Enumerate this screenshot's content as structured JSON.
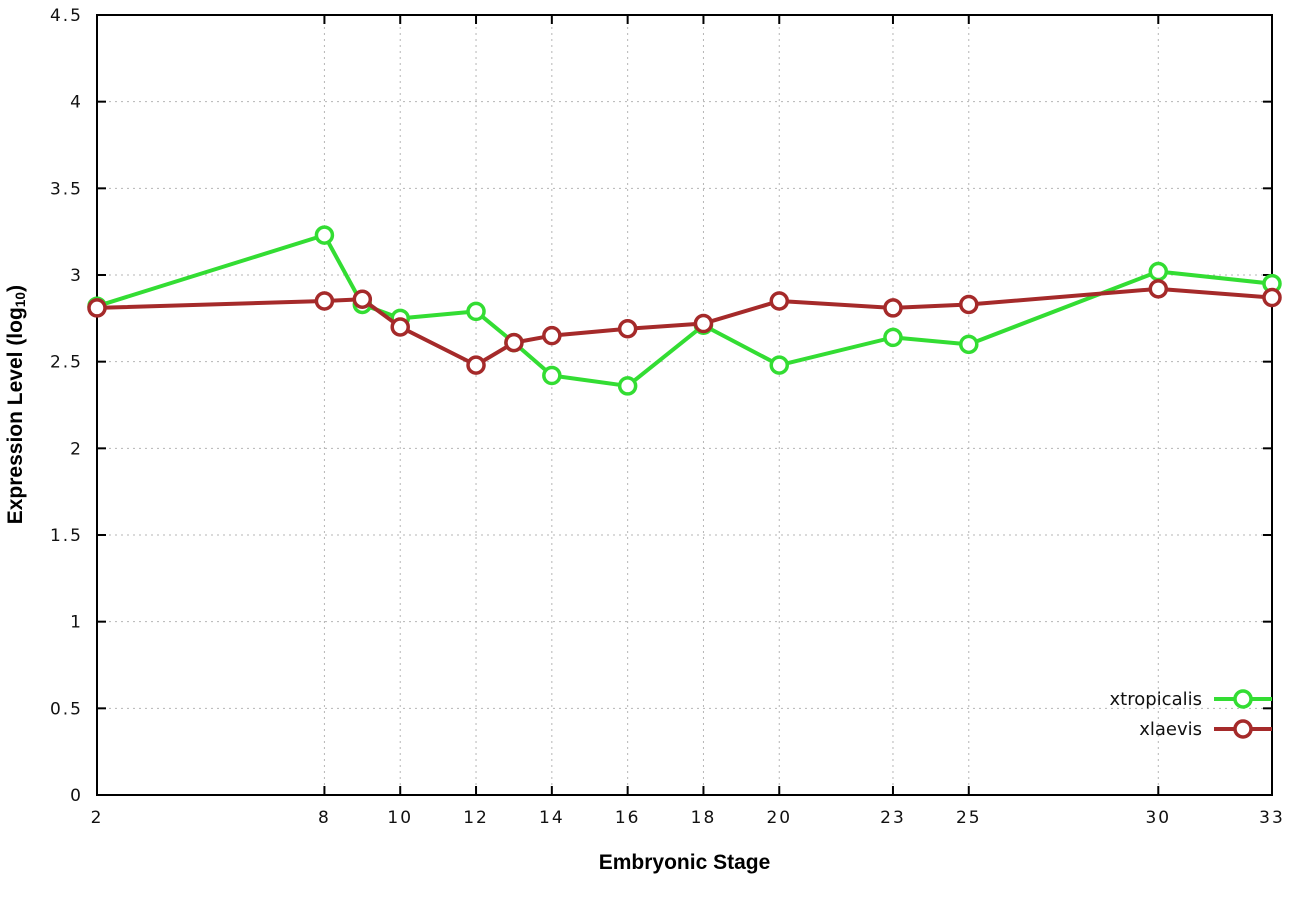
{
  "chart_data": {
    "type": "line",
    "xlabel": "Embryonic Stage",
    "ylabel_parts": {
      "main": "Expression Level (log",
      "sub": "10",
      "close": ")"
    },
    "x": [
      2,
      8,
      9,
      10,
      12,
      13,
      14,
      16,
      18,
      20,
      23,
      25,
      30,
      33
    ],
    "series": [
      {
        "name": "xtropicalis",
        "color": "#33dd33",
        "values": [
          2.82,
          3.23,
          2.83,
          2.75,
          2.79,
          2.61,
          2.42,
          2.36,
          2.71,
          2.48,
          2.64,
          2.6,
          3.02,
          2.95
        ]
      },
      {
        "name": "xlaevis",
        "color": "#a52a2a",
        "values": [
          2.81,
          2.85,
          2.86,
          2.7,
          2.48,
          2.61,
          2.65,
          2.69,
          2.72,
          2.85,
          2.81,
          2.83,
          2.92,
          2.87
        ]
      }
    ],
    "xlim": [
      2,
      33
    ],
    "ylim": [
      0,
      4.5
    ],
    "xticks": [
      2,
      8,
      10,
      12,
      14,
      16,
      18,
      20,
      23,
      25,
      30,
      33
    ],
    "yticks": [
      0,
      0.5,
      1,
      1.5,
      2,
      2.5,
      3,
      3.5,
      4,
      4.5
    ],
    "grid": true,
    "legend_position": "bottom-right",
    "marker": "open-circle",
    "background": "#ffffff"
  }
}
